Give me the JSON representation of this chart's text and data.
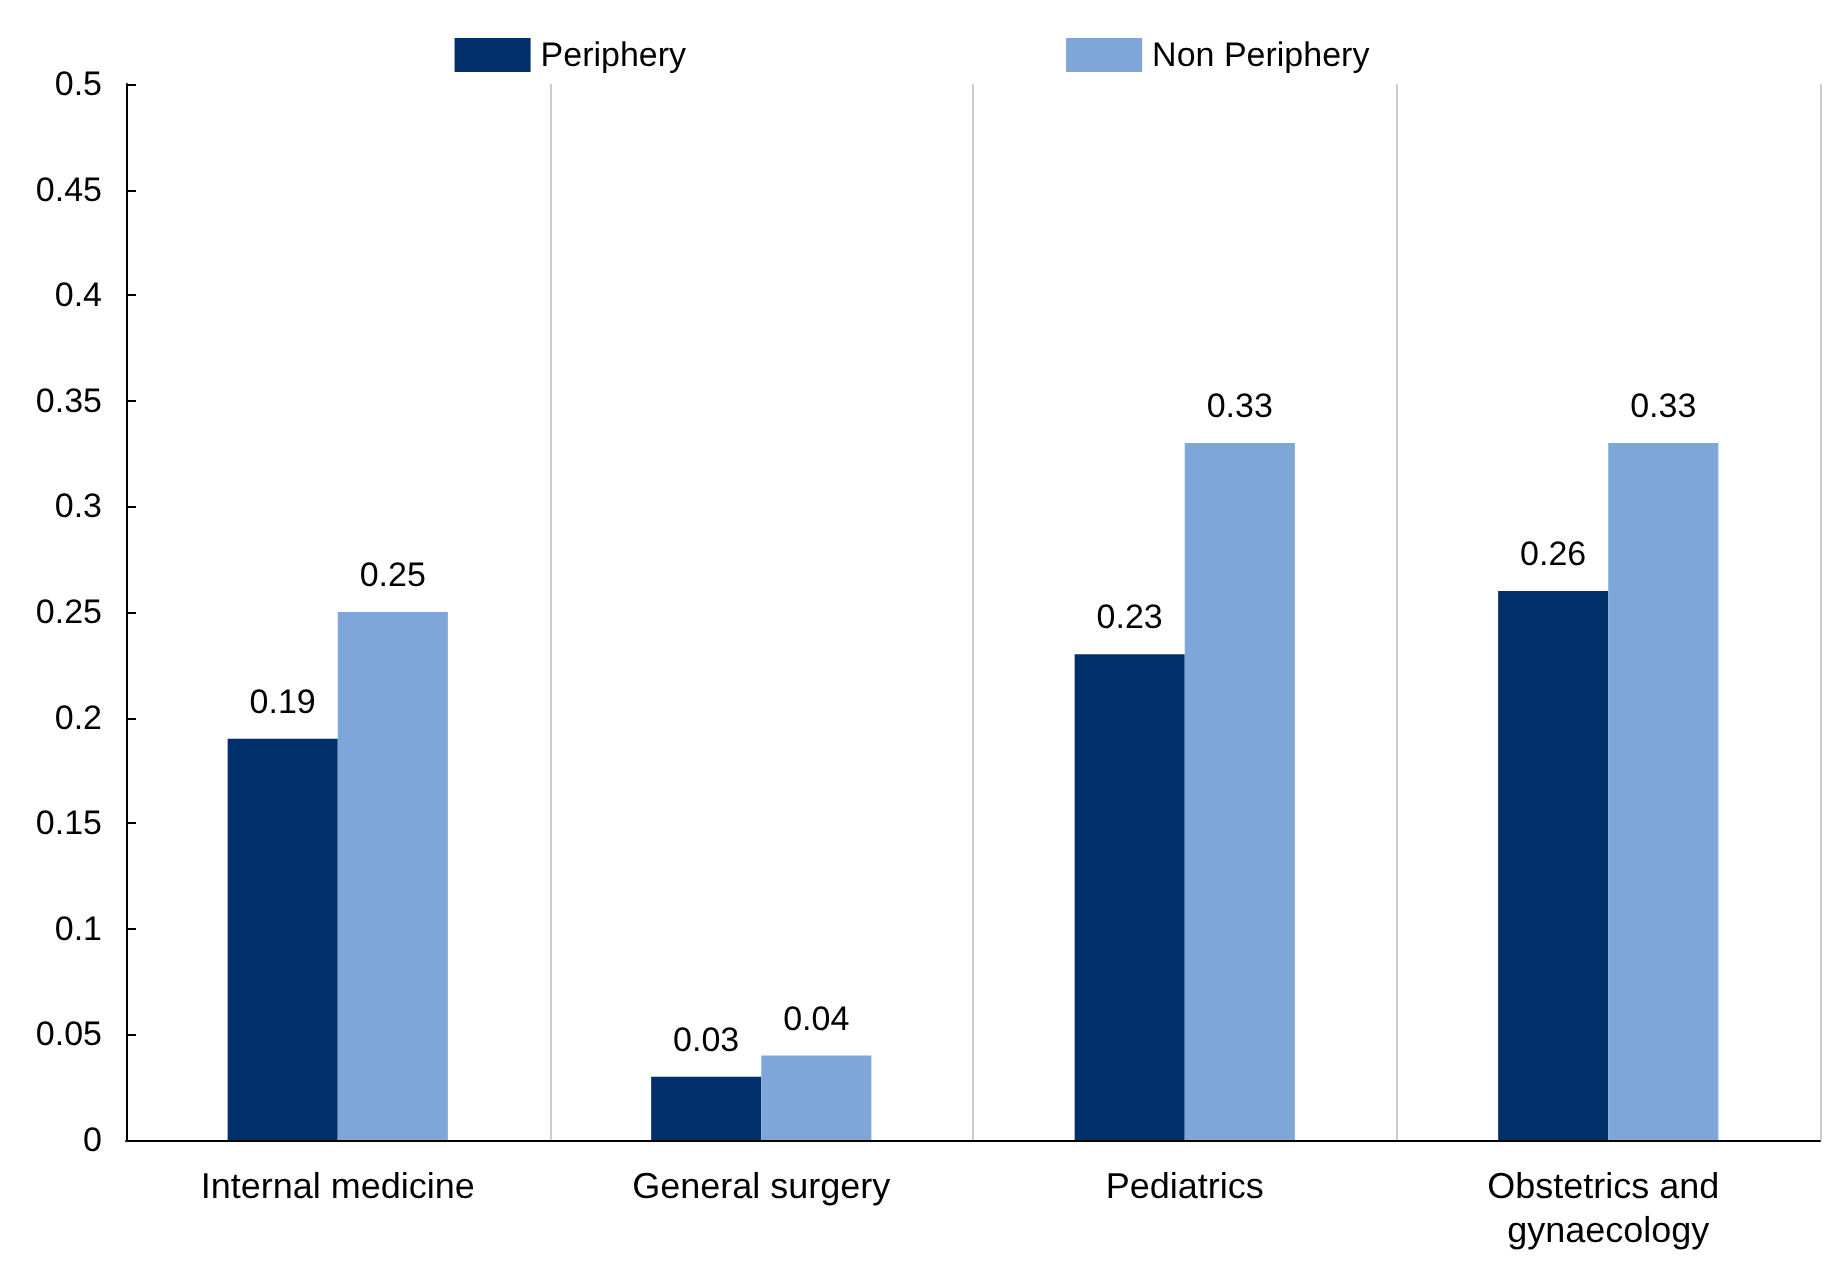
{
  "chart_data": {
    "type": "bar",
    "categories": [
      "Internal medicine",
      "General surgery",
      "Pediatrics",
      "Obstetrics and gynaecology"
    ],
    "series": [
      {
        "name": "Periphery",
        "color": "#002f6c",
        "values": [
          0.19,
          0.03,
          0.23,
          0.26
        ]
      },
      {
        "name": "Non Periphery",
        "color": "#7fa6d9",
        "values": [
          0.25,
          0.04,
          0.33,
          0.33
        ]
      }
    ],
    "ylim": [
      0,
      0.5
    ],
    "yticks": [
      0,
      0.05,
      0.1,
      0.15,
      0.2,
      0.25,
      0.3,
      0.35,
      0.4,
      0.45,
      0.5
    ],
    "grid": "x",
    "legend": "top",
    "data_labels": true
  }
}
